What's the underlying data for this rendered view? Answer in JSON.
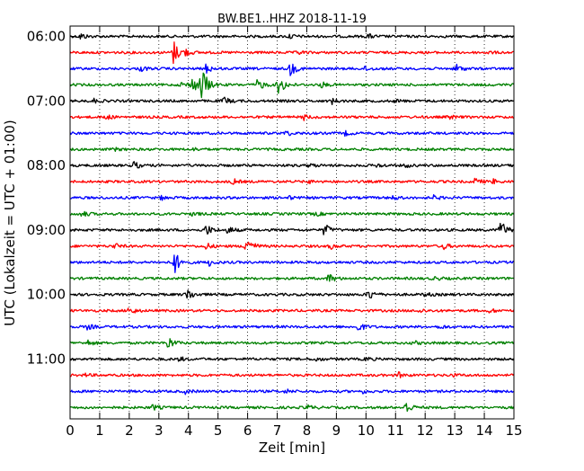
{
  "chart_data": {
    "type": "line",
    "title": "BW.BE1..HHZ 2018-11-19",
    "xlabel": "Zeit  [min]",
    "ylabel": "UTC (Lokalzeit = UTC + 01:00)",
    "xlim": [
      0,
      15
    ],
    "x_ticks": [
      0,
      1,
      2,
      3,
      4,
      5,
      6,
      7,
      8,
      9,
      10,
      11,
      12,
      13,
      14,
      15
    ],
    "x_tick_labels": [
      "0",
      "1",
      "2",
      "3",
      "4",
      "5",
      "6",
      "7",
      "8",
      "9",
      "10",
      "11",
      "12",
      "13",
      "14",
      "15"
    ],
    "y_tick_labels": [
      "06:00",
      "07:00",
      "08:00",
      "09:00",
      "10:00",
      "11:00"
    ],
    "grid": "vertical-dotted",
    "line_interval_min": 15,
    "color_cycle": [
      "#000000",
      "#ff0000",
      "#0000ff",
      "#008000"
    ],
    "traces": [
      {
        "start": "06:00",
        "events": [
          [
            0.35,
            0.25
          ],
          [
            7.4,
            0.2
          ],
          [
            10.05,
            0.2
          ]
        ]
      },
      {
        "start": "06:15",
        "events": [
          [
            3.5,
            0.95
          ],
          [
            3.85,
            0.3
          ],
          [
            7.7,
            0.15
          ],
          [
            14.1,
            0.1
          ]
        ]
      },
      {
        "start": "06:30",
        "events": [
          [
            2.4,
            0.2
          ],
          [
            4.6,
            0.35
          ],
          [
            7.45,
            0.55
          ],
          [
            10.0,
            0.2
          ],
          [
            13.05,
            0.35
          ]
        ]
      },
      {
        "start": "06:45",
        "events": [
          [
            3.8,
            0.3
          ],
          [
            4.15,
            0.6
          ],
          [
            4.45,
            1.6
          ],
          [
            6.35,
            0.5
          ],
          [
            7.05,
            0.9
          ],
          [
            8.5,
            0.2
          ]
        ]
      },
      {
        "start": "07:00",
        "events": [
          [
            0.8,
            0.15
          ],
          [
            5.2,
            0.3
          ],
          [
            8.85,
            0.2
          ],
          [
            11.0,
            0.1
          ]
        ]
      },
      {
        "start": "07:15",
        "events": [
          [
            1.2,
            0.2
          ],
          [
            7.9,
            0.2
          ],
          [
            12.8,
            0.15
          ]
        ]
      },
      {
        "start": "07:30",
        "events": [
          [
            7.3,
            0.2
          ],
          [
            9.3,
            0.15
          ]
        ]
      },
      {
        "start": "07:45",
        "events": [
          [
            1.5,
            0.1
          ],
          [
            4.2,
            0.1
          ]
        ]
      },
      {
        "start": "08:00",
        "events": [
          [
            2.15,
            0.3
          ],
          [
            8.1,
            0.15
          ],
          [
            10.4,
            0.15
          ],
          [
            11.3,
            0.15
          ]
        ]
      },
      {
        "start": "08:15",
        "events": [
          [
            5.5,
            0.2
          ],
          [
            8.0,
            0.15
          ],
          [
            13.7,
            0.25
          ],
          [
            14.3,
            0.15
          ]
        ]
      },
      {
        "start": "08:30",
        "events": [
          [
            3.1,
            0.15
          ],
          [
            7.35,
            0.15
          ],
          [
            10.9,
            0.15
          ],
          [
            12.3,
            0.15
          ]
        ]
      },
      {
        "start": "08:45",
        "events": [
          [
            0.4,
            0.25
          ],
          [
            4.15,
            0.15
          ],
          [
            8.3,
            0.15
          ]
        ]
      },
      {
        "start": "09:00",
        "events": [
          [
            4.6,
            0.45
          ],
          [
            5.35,
            0.3
          ],
          [
            8.6,
            0.5
          ],
          [
            14.55,
            0.85
          ]
        ]
      },
      {
        "start": "09:15",
        "events": [
          [
            1.5,
            0.2
          ],
          [
            4.6,
            0.25
          ],
          [
            5.95,
            1.0
          ],
          [
            8.8,
            0.2
          ],
          [
            12.6,
            0.25
          ]
        ]
      },
      {
        "start": "09:30",
        "events": [
          [
            3.5,
            1.1
          ],
          [
            4.7,
            0.25
          ]
        ]
      },
      {
        "start": "09:45",
        "events": [
          [
            8.75,
            0.4
          ],
          [
            12.3,
            0.15
          ]
        ]
      },
      {
        "start": "10:00",
        "events": [
          [
            3.95,
            0.55
          ],
          [
            10.1,
            0.45
          ],
          [
            12.0,
            0.15
          ]
        ]
      },
      {
        "start": "10:15",
        "events": [
          [
            2.0,
            0.35
          ],
          [
            11.8,
            0.15
          ],
          [
            14.2,
            0.15
          ]
        ]
      },
      {
        "start": "10:30",
        "events": [
          [
            0.6,
            0.2
          ],
          [
            9.75,
            0.35
          ],
          [
            12.5,
            0.15
          ]
        ]
      },
      {
        "start": "10:45",
        "events": [
          [
            0.6,
            0.2
          ],
          [
            3.3,
            0.55
          ],
          [
            11.6,
            0.15
          ]
        ]
      },
      {
        "start": "11:00",
        "events": [
          [
            3.7,
            0.15
          ],
          [
            8.3,
            0.15
          ],
          [
            10.0,
            0.15
          ]
        ]
      },
      {
        "start": "11:15",
        "events": [
          [
            0.5,
            0.1
          ],
          [
            11.1,
            0.2
          ],
          [
            12.9,
            0.1
          ]
        ]
      },
      {
        "start": "11:30",
        "events": [
          [
            3.9,
            0.15
          ],
          [
            7.3,
            0.15
          ],
          [
            9.9,
            0.1
          ]
        ]
      },
      {
        "start": "11:45",
        "events": [
          [
            2.8,
            0.2
          ],
          [
            8.0,
            0.2
          ],
          [
            11.35,
            0.5
          ]
        ]
      }
    ]
  }
}
